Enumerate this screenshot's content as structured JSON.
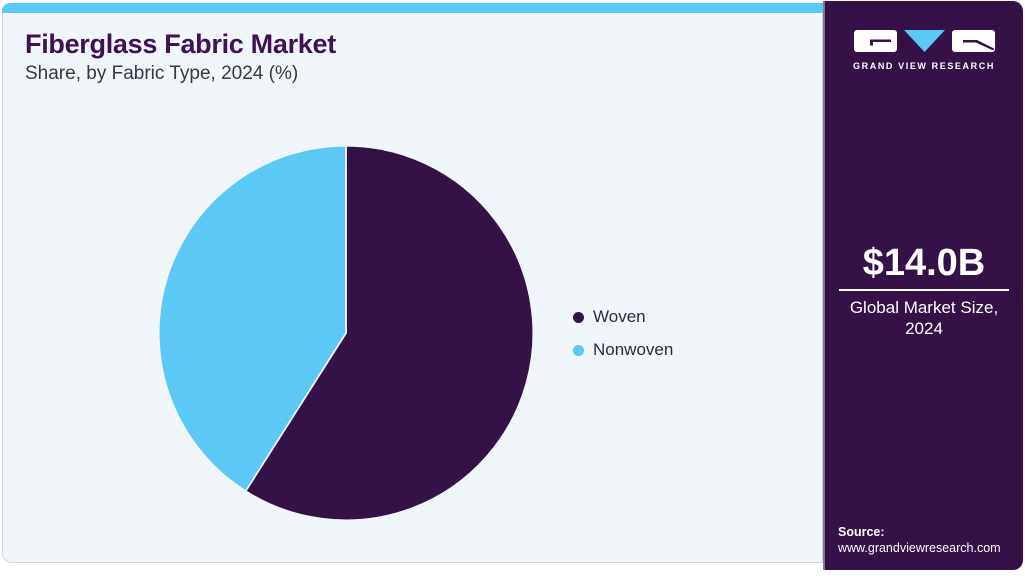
{
  "header": {
    "title": "Fiberglass Fabric Market",
    "subtitle": "Share, by Fabric Type, 2024 (%)"
  },
  "chart_data": {
    "type": "pie",
    "title": "Fiberglass Fabric Market Share, by Fabric Type, 2024 (%)",
    "labels": [
      "Woven",
      "Nonwoven"
    ],
    "values": [
      59,
      41
    ],
    "unit": "%",
    "colors": [
      "#341147",
      "#5bc8f5"
    ],
    "slice_stroke": "#f1f6fa",
    "start_angle_deg": 0,
    "direction": "clockwise",
    "legend_position": "right"
  },
  "sidebar": {
    "brand": "GRAND VIEW RESEARCH",
    "market_size": "$14.0B",
    "market_size_label_line1": "Global Market Size,",
    "market_size_label_line2": "2024",
    "source_label": "Source:",
    "source_url": "www.grandviewresearch.com"
  },
  "colors": {
    "primary_purple": "#341147",
    "accent_blue": "#5bc8f5",
    "title_purple": "#3e1254",
    "card_bg": "#f1f6fa",
    "card_border": "#cbd5dc"
  }
}
